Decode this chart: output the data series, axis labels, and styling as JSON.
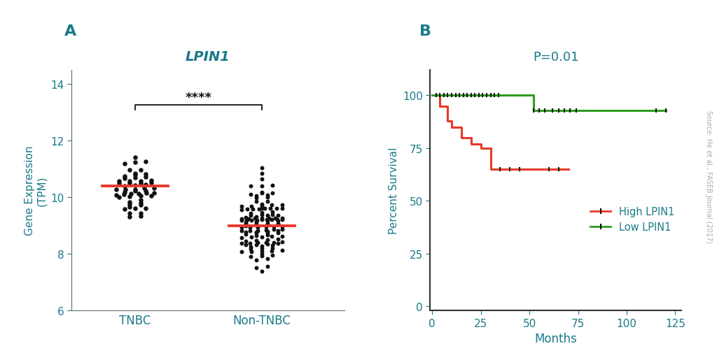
{
  "panel_A_label": "A",
  "panel_B_label": "B",
  "title_A": "LPIN1",
  "title_B": "P=0.01",
  "ylabel_A": "Gene Expression\n(TPM)",
  "xlabel_A_labels": [
    "TNBC",
    "Non-TNBC"
  ],
  "ylabel_B": "Percent Survival",
  "xlabel_B": "Months",
  "ylim_A": [
    6,
    14.5
  ],
  "yticks_A": [
    6,
    8,
    10,
    12,
    14
  ],
  "ylim_B": [
    -2,
    112
  ],
  "yticks_B": [
    0,
    25,
    50,
    75,
    100
  ],
  "xticks_B": [
    0,
    25,
    50,
    75,
    100,
    125
  ],
  "teal_color": "#1a7a8a",
  "red_color": "#e8392a",
  "green_color": "#2e9e1f",
  "dot_color": "#111111",
  "median_color_A": "#e8392a",
  "tnbc_median": 10.4,
  "nontnbc_median": 9.0,
  "significance_text": "****",
  "source_text": "Source: He et al., FASEB Journal (2017)",
  "high_lpin1_times": [
    0,
    4,
    8,
    10,
    15,
    20,
    25,
    30,
    35,
    60,
    65,
    70
  ],
  "high_lpin1_surv": [
    100,
    95,
    88,
    85,
    80,
    77,
    75,
    65,
    65,
    65,
    65,
    65
  ],
  "low_lpin1_times": [
    0,
    50,
    52,
    115,
    120
  ],
  "low_lpin1_surv": [
    100,
    100,
    93,
    93,
    93
  ],
  "high_censor_times": [
    35,
    40,
    45,
    60,
    65
  ],
  "high_censor_surv": [
    65,
    65,
    65,
    65,
    65
  ],
  "low_censor_times": [
    2,
    4,
    6,
    8,
    10,
    12,
    14,
    16,
    18,
    20,
    22,
    24,
    26,
    28,
    30,
    32,
    34,
    52,
    55,
    58,
    62,
    65,
    68,
    71,
    74,
    115,
    120
  ],
  "low_censor_surv": [
    100,
    100,
    100,
    100,
    100,
    100,
    100,
    100,
    100,
    100,
    100,
    100,
    100,
    100,
    100,
    100,
    100,
    93,
    93,
    93,
    93,
    93,
    93,
    93,
    93,
    93,
    93
  ]
}
